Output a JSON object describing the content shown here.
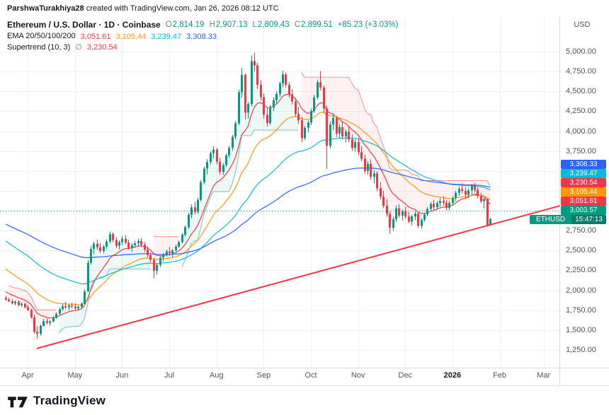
{
  "attribution": {
    "user": "ParshwaTurakhiya28",
    "rest": " created with TradingView.com, Jan 26, 2026 08:12 UTC"
  },
  "legend": {
    "title": "Ethereum / U.S. Dollar · 1D · Coinbase",
    "ohlc": [
      {
        "label": "O",
        "value": "2,814.19"
      },
      {
        "label": "H",
        "value": "2,907.13"
      },
      {
        "label": "L",
        "value": "2,809.43"
      },
      {
        "label": "C",
        "value": "2,899.51"
      }
    ],
    "change": "+85.23 (+3.03%)",
    "change_color": "#089981",
    "ema": {
      "label": "EMA 20/50/100/200",
      "values": [
        {
          "value": "3,051.61",
          "color": "#f23645"
        },
        {
          "value": "3,105.44",
          "color": "#ff9800"
        },
        {
          "value": "3,239.47",
          "color": "#00bcd4"
        },
        {
          "value": "3,308.33",
          "color": "#2962ff"
        }
      ]
    },
    "supertrend": {
      "label": "Supertrend (10, 3)",
      "prefix": "∅",
      "value": "3,230.54",
      "color": "#f23645"
    }
  },
  "price_axis": {
    "currency": "USD",
    "ticks": [
      {
        "price": 5000,
        "label": "5,000.00"
      },
      {
        "price": 4750,
        "label": "4,750.00"
      },
      {
        "price": 4500,
        "label": "4,500.00"
      },
      {
        "price": 4250,
        "label": "4,250.00"
      },
      {
        "price": 4000,
        "label": "4,000.00"
      },
      {
        "price": 3750,
        "label": "3,750.00"
      },
      {
        "price": 3500,
        "label": "3,500.00"
      },
      {
        "price": 3250,
        "label": "3,250.00"
      },
      {
        "price": 3000,
        "label": "3,000.00"
      },
      {
        "price": 2750,
        "label": "2,750.00"
      },
      {
        "price": 2500,
        "label": "2,500.00"
      },
      {
        "price": 2250,
        "label": "2,250.00"
      },
      {
        "price": 2000,
        "label": "2,000.00"
      },
      {
        "price": 1750,
        "label": "1,750.00"
      },
      {
        "price": 1500,
        "label": "1,500.00"
      },
      {
        "price": 1250,
        "label": "1,250.00"
      }
    ]
  },
  "time_axis": {
    "ticks": [
      {
        "slot": 7,
        "label": "Apr"
      },
      {
        "slot": 22,
        "label": "May"
      },
      {
        "slot": 37,
        "label": "Jun"
      },
      {
        "slot": 52,
        "label": "Jul"
      },
      {
        "slot": 67,
        "label": "Aug"
      },
      {
        "slot": 82,
        "label": "Sep"
      },
      {
        "slot": 97,
        "label": "Oct"
      },
      {
        "slot": 112,
        "label": "Nov"
      },
      {
        "slot": 127,
        "label": "Dec"
      },
      {
        "slot": 142,
        "label": "2026",
        "strong": true
      },
      {
        "slot": 157,
        "label": "Feb"
      },
      {
        "slot": 171,
        "label": "Mar"
      }
    ]
  },
  "badges": {
    "price_labels": [
      {
        "price": 3308.33,
        "label": "3,308.33",
        "color": "#2962ff"
      },
      {
        "price": 3239.47,
        "label": "3,239.47",
        "color": "#00bcd4"
      },
      {
        "price": 3230.54,
        "label": "3,230.54",
        "color": "#f23645"
      },
      {
        "price": 3105.44,
        "label": "3,105.44",
        "color": "#ff9800"
      },
      {
        "price": 3051.61,
        "label": "3,051.61",
        "color": "#f23645"
      },
      {
        "price": 3003.57,
        "label": "3,003.57",
        "color": "#089981"
      }
    ],
    "symbol": {
      "text": "ETHUSD",
      "countdown": "15:47:13",
      "color": "#089981"
    }
  },
  "footer": {
    "brand": "TradingView"
  },
  "chart_data": {
    "type": "candlestick",
    "symbol": "ETHUSD",
    "title": "Ethereum / U.S. Dollar",
    "interval": "1D",
    "exchange": "Coinbase",
    "currency": "USD",
    "grid": true,
    "y_range": [
      1250,
      5000
    ],
    "total_slots": 176,
    "up_color": "#089981",
    "down_color": "#f23645",
    "last_bar": {
      "open": 2814.19,
      "high": 2907.13,
      "low": 2809.43,
      "close": 2899.51,
      "change": 85.23,
      "change_pct": 3.03
    },
    "candles": [
      [
        1905,
        1930,
        1868,
        1882
      ],
      [
        1882,
        1908,
        1850,
        1862
      ],
      [
        1862,
        1890,
        1822,
        1836
      ],
      [
        1836,
        1871,
        1810,
        1858
      ],
      [
        1858,
        1872,
        1801,
        1813
      ],
      [
        1813,
        1846,
        1790,
        1831
      ],
      [
        1831,
        1843,
        1772,
        1786
      ],
      [
        1786,
        1816,
        1741,
        1753
      ],
      [
        1753,
        1771,
        1642,
        1661
      ],
      [
        1661,
        1691,
        1456,
        1479
      ],
      [
        1479,
        1546,
        1392,
        1453
      ],
      [
        1453,
        1569,
        1431,
        1553
      ],
      [
        1553,
        1641,
        1546,
        1613
      ],
      [
        1613,
        1649,
        1571,
        1591
      ],
      [
        1591,
        1623,
        1553,
        1609
      ],
      [
        1609,
        1676,
        1596,
        1653
      ],
      [
        1653,
        1721,
        1641,
        1706
      ],
      [
        1706,
        1781,
        1689,
        1763
      ],
      [
        1763,
        1829,
        1743,
        1801
      ],
      [
        1801,
        1853,
        1763,
        1786
      ],
      [
        1786,
        1823,
        1751,
        1809
      ],
      [
        1809,
        1841,
        1773,
        1796
      ],
      [
        1796,
        1836,
        1759,
        1773
      ],
      [
        1773,
        1811,
        1746,
        1791
      ],
      [
        1791,
        1846,
        1781,
        1833
      ],
      [
        1833,
        2011,
        1826,
        1986
      ],
      [
        1986,
        2381,
        1976,
        2346
      ],
      [
        2346,
        2561,
        2321,
        2521
      ],
      [
        2521,
        2611,
        2453,
        2586
      ],
      [
        2586,
        2636,
        2511,
        2541
      ],
      [
        2541,
        2596,
        2471,
        2493
      ],
      [
        2493,
        2571,
        2463,
        2549
      ],
      [
        2549,
        2641,
        2521,
        2613
      ],
      [
        2613,
        2739,
        2591,
        2706
      ],
      [
        2706,
        2726,
        2603,
        2633
      ],
      [
        2633,
        2669,
        2529,
        2559
      ],
      [
        2559,
        2626,
        2513,
        2606
      ],
      [
        2606,
        2681,
        2569,
        2649
      ],
      [
        2649,
        2693,
        2576,
        2599
      ],
      [
        2599,
        2636,
        2509,
        2533
      ],
      [
        2533,
        2591,
        2481,
        2566
      ],
      [
        2566,
        2623,
        2536,
        2591
      ],
      [
        2591,
        2649,
        2553,
        2619
      ],
      [
        2619,
        2659,
        2546,
        2573
      ],
      [
        2573,
        2606,
        2481,
        2511
      ],
      [
        2511,
        2549,
        2419,
        2443
      ],
      [
        2443,
        2479,
        2351,
        2381
      ],
      [
        2381,
        2406,
        2151,
        2246
      ],
      [
        2246,
        2341,
        2196,
        2319
      ],
      [
        2319,
        2433,
        2291,
        2409
      ],
      [
        2409,
        2466,
        2363,
        2443
      ],
      [
        2443,
        2513,
        2421,
        2489
      ],
      [
        2489,
        2543,
        2433,
        2466
      ],
      [
        2466,
        2521,
        2409,
        2503
      ],
      [
        2503,
        2573,
        2479,
        2549
      ],
      [
        2549,
        2626,
        2531,
        2606
      ],
      [
        2606,
        2719,
        2589,
        2699
      ],
      [
        2699,
        2816,
        2673,
        2793
      ],
      [
        2793,
        2976,
        2771,
        2949
      ],
      [
        2949,
        3079,
        2906,
        3043
      ],
      [
        3043,
        3113,
        2953,
        2986
      ],
      [
        2986,
        3163,
        2963,
        3136
      ],
      [
        3136,
        3386,
        3119,
        3359
      ],
      [
        3359,
        3553,
        3331,
        3529
      ],
      [
        3529,
        3649,
        3456,
        3613
      ],
      [
        3613,
        3746,
        3581,
        3723
      ],
      [
        3723,
        3813,
        3656,
        3769
      ],
      [
        3769,
        3791,
        3583,
        3616
      ],
      [
        3616,
        3666,
        3453,
        3489
      ],
      [
        3489,
        3599,
        3449,
        3573
      ],
      [
        3573,
        3719,
        3549,
        3696
      ],
      [
        3696,
        3813,
        3661,
        3789
      ],
      [
        3789,
        3953,
        3756,
        3929
      ],
      [
        3929,
        4126,
        3896,
        4099
      ],
      [
        4099,
        4521,
        4076,
        4489
      ],
      [
        4489,
        4793,
        4421,
        4706
      ],
      [
        4706,
        4723,
        4149,
        4233
      ],
      [
        4233,
        4369,
        4156,
        4341
      ],
      [
        4341,
        4953,
        4311,
        4881
      ],
      [
        4881,
        4989,
        4753,
        4826
      ],
      [
        4826,
        4861,
        4529,
        4583
      ],
      [
        4583,
        4641,
        4386,
        4429
      ],
      [
        4429,
        4471,
        4159,
        4206
      ],
      [
        4206,
        4289,
        4056,
        4103
      ],
      [
        4103,
        4329,
        4079,
        4296
      ],
      [
        4296,
        4426,
        4253,
        4389
      ],
      [
        4389,
        4503,
        4331,
        4469
      ],
      [
        4469,
        4626,
        4433,
        4599
      ],
      [
        4599,
        4763,
        4551,
        4713
      ],
      [
        4713,
        4736,
        4549,
        4581
      ],
      [
        4581,
        4619,
        4421,
        4463
      ],
      [
        4463,
        4526,
        4336,
        4373
      ],
      [
        4373,
        4416,
        4179,
        4216
      ],
      [
        4216,
        4303,
        4089,
        4136
      ],
      [
        4136,
        4176,
        3863,
        3913
      ],
      [
        3913,
        4066,
        3889,
        4043
      ],
      [
        4043,
        4136,
        3986,
        4109
      ],
      [
        4109,
        4286,
        4076,
        4253
      ],
      [
        4253,
        4459,
        4229,
        4423
      ],
      [
        4423,
        4649,
        4396,
        4616
      ],
      [
        4616,
        4756,
        4513,
        4549
      ],
      [
        4549,
        4573,
        4233,
        4286
      ],
      [
        4286,
        4323,
        3523,
        3816
      ],
      [
        3816,
        4126,
        3783,
        4083
      ],
      [
        4083,
        4219,
        4013,
        4166
      ],
      [
        4166,
        4193,
        3926,
        3969
      ],
      [
        3969,
        4086,
        3913,
        4049
      ],
      [
        4049,
        4123,
        3896,
        3933
      ],
      [
        3933,
        4023,
        3859,
        3993
      ],
      [
        3993,
        4059,
        3863,
        3896
      ],
      [
        3896,
        3959,
        3753,
        3789
      ],
      [
        3789,
        3893,
        3746,
        3863
      ],
      [
        3863,
        3919,
        3699,
        3736
      ],
      [
        3736,
        3813,
        3623,
        3653
      ],
      [
        3653,
        3706,
        3466,
        3499
      ],
      [
        3499,
        3623,
        3449,
        3589
      ],
      [
        3589,
        3646,
        3393,
        3426
      ],
      [
        3426,
        3513,
        3343,
        3469
      ],
      [
        3469,
        3496,
        3246,
        3283
      ],
      [
        3283,
        3359,
        3143,
        3176
      ],
      [
        3176,
        3249,
        3029,
        3063
      ],
      [
        3063,
        3146,
        2923,
        2959
      ],
      [
        2959,
        2989,
        2712,
        2786
      ],
      [
        2786,
        2926,
        2749,
        2893
      ],
      [
        2893,
        3066,
        2856,
        3029
      ],
      [
        3029,
        3083,
        2913,
        2939
      ],
      [
        2939,
        3016,
        2876,
        2996
      ],
      [
        2996,
        3049,
        2903,
        2926
      ],
      [
        2926,
        2983,
        2843,
        2863
      ],
      [
        2863,
        2949,
        2816,
        2929
      ],
      [
        2929,
        2996,
        2881,
        2963
      ],
      [
        2963,
        2989,
        2783,
        2809
      ],
      [
        2809,
        2903,
        2773,
        2886
      ],
      [
        2886,
        2976,
        2859,
        2953
      ],
      [
        2953,
        3049,
        2929,
        3023
      ],
      [
        3023,
        3113,
        2993,
        3086
      ],
      [
        3086,
        3136,
        3009,
        3043
      ],
      [
        3043,
        3119,
        3013,
        3096
      ],
      [
        3096,
        3163,
        3049,
        3123
      ],
      [
        3123,
        3179,
        3066,
        3099
      ],
      [
        3099,
        3133,
        3006,
        3036
      ],
      [
        3036,
        3123,
        3003,
        3099
      ],
      [
        3099,
        3186,
        3063,
        3159
      ],
      [
        3159,
        3249,
        3123,
        3226
      ],
      [
        3226,
        3306,
        3186,
        3273
      ],
      [
        3273,
        3343,
        3219,
        3249
      ],
      [
        3249,
        3296,
        3166,
        3199
      ],
      [
        3199,
        3283,
        3159,
        3256
      ],
      [
        3256,
        3336,
        3206,
        3313
      ],
      [
        3313,
        3349,
        3229,
        3263
      ],
      [
        3263,
        3296,
        3153,
        3186
      ],
      [
        3186,
        3226,
        3093,
        3119
      ],
      [
        3119,
        3163,
        3029,
        3146
      ],
      [
        3146,
        3159,
        2799,
        2816
      ],
      [
        2814.19,
        2907.13,
        2809.43,
        2899.51
      ]
    ],
    "emas": [
      {
        "label": "EMA 20",
        "period": 20,
        "color": "#f23645",
        "last": 3051.61,
        "seed": 2000,
        "calc_period": 11
      },
      {
        "label": "EMA 50",
        "period": 50,
        "color": "#ff9800",
        "last": 3105.44,
        "seed": 2300,
        "calc_period": 26
      },
      {
        "label": "EMA 100",
        "period": 100,
        "color": "#00bcd4",
        "last": 3239.47,
        "seed": 2650,
        "calc_period": 52
      },
      {
        "label": "EMA 200",
        "period": 200,
        "color": "#2962ff",
        "last": 3308.33,
        "seed": 2850,
        "calc_period": 103
      }
    ],
    "supertrend": {
      "label": "Supertrend (10, 3)",
      "period": 10,
      "factor": 3,
      "last": 3230.54,
      "up_color": "#089981",
      "down_color": "#f23645",
      "fill_alpha": 0.07
    },
    "trendline": {
      "from_slot": 10,
      "from_price": 1270,
      "to_slot": 176,
      "to_price": 3060,
      "color": "#f23645",
      "width": 2
    },
    "price_line": {
      "price": 3003.57,
      "color": "#089981",
      "style": "dashed"
    }
  }
}
